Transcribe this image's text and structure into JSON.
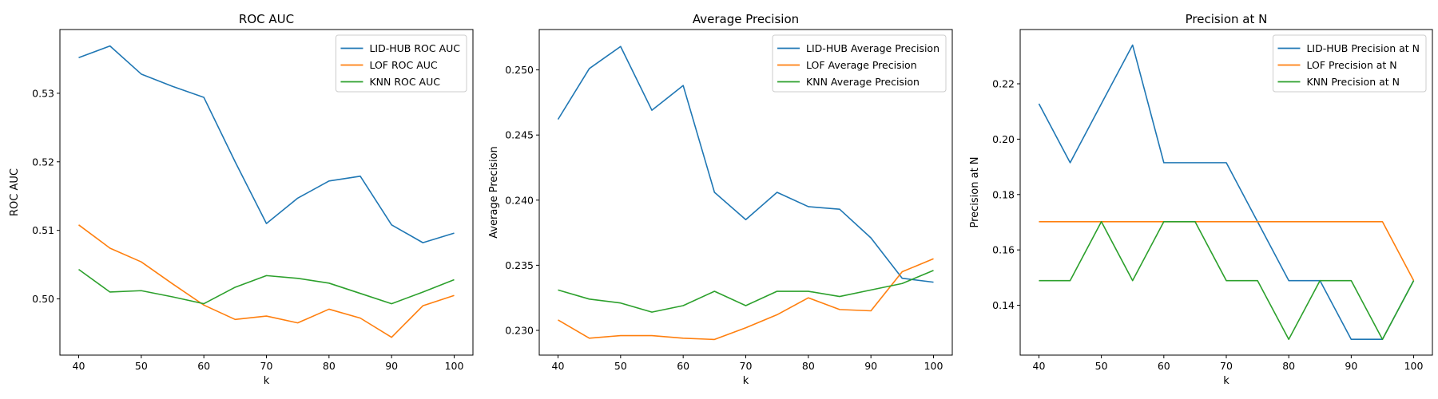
{
  "colors": {
    "lid": "#1f77b4",
    "lof": "#ff7f0e",
    "knn": "#2ca02c"
  },
  "chart_data": [
    {
      "type": "line",
      "title": "ROC AUC",
      "xlabel": "k",
      "ylabel": "ROC AUC",
      "xlim": [
        37,
        103
      ],
      "ylim": [
        0.4918,
        0.5393
      ],
      "xticks": [
        40,
        50,
        60,
        70,
        80,
        90,
        100
      ],
      "yticks": [
        0.5,
        0.51,
        0.52,
        0.53
      ],
      "ytick_labels": [
        "0.50",
        "0.51",
        "0.52",
        "0.53"
      ],
      "legend": "top-right",
      "x": [
        40,
        45,
        50,
        55,
        60,
        65,
        70,
        75,
        80,
        85,
        90,
        95,
        100
      ],
      "series": [
        {
          "name": "LID-HUB ROC AUC",
          "color": "#1f77b4",
          "values": [
            0.5352,
            0.5369,
            0.5328,
            0.531,
            0.5294,
            0.52,
            0.511,
            0.5147,
            0.5172,
            0.5179,
            0.5108,
            0.5082,
            0.5096
          ]
        },
        {
          "name": "LOF ROC AUC",
          "color": "#ff7f0e",
          "values": [
            0.5108,
            0.5074,
            0.5054,
            0.5022,
            0.4991,
            0.497,
            0.4975,
            0.4965,
            0.4985,
            0.4972,
            0.4944,
            0.499,
            0.5005
          ]
        },
        {
          "name": "KNN ROC AUC",
          "color": "#2ca02c",
          "values": [
            0.5043,
            0.501,
            0.5012,
            0.5003,
            0.4993,
            0.5017,
            0.5034,
            0.503,
            0.5023,
            0.5008,
            0.4993,
            0.501,
            0.5028
          ]
        }
      ]
    },
    {
      "type": "line",
      "title": "Average Precision",
      "xlabel": "k",
      "ylabel": "Average Precision",
      "xlim": [
        37,
        103
      ],
      "ylim": [
        0.2281,
        0.2531
      ],
      "xticks": [
        40,
        50,
        60,
        70,
        80,
        90,
        100
      ],
      "yticks": [
        0.23,
        0.235,
        0.24,
        0.245,
        0.25
      ],
      "ytick_labels": [
        "0.230",
        "0.235",
        "0.240",
        "0.245",
        "0.250"
      ],
      "legend": "top-right",
      "x": [
        40,
        45,
        50,
        55,
        60,
        65,
        70,
        75,
        80,
        85,
        90,
        95,
        100
      ],
      "series": [
        {
          "name": "LID-HUB Average Precision",
          "color": "#1f77b4",
          "values": [
            0.2462,
            0.2501,
            0.2518,
            0.2469,
            0.2488,
            0.2406,
            0.2385,
            0.2406,
            0.2395,
            0.2393,
            0.2371,
            0.234,
            0.2337
          ]
        },
        {
          "name": "LOF Average Precision",
          "color": "#ff7f0e",
          "values": [
            0.2308,
            0.2294,
            0.2296,
            0.2296,
            0.2294,
            0.2293,
            0.2302,
            0.2312,
            0.2325,
            0.2316,
            0.2315,
            0.2345,
            0.2355
          ]
        },
        {
          "name": "KNN Average Precision",
          "color": "#2ca02c",
          "values": [
            0.2331,
            0.2324,
            0.2321,
            0.2314,
            0.2319,
            0.233,
            0.2319,
            0.233,
            0.233,
            0.2326,
            0.2331,
            0.2336,
            0.2346
          ]
        }
      ]
    },
    {
      "type": "line",
      "title": "Precision at N",
      "xlabel": "k",
      "ylabel": "Precision at N",
      "xlim": [
        37,
        103
      ],
      "ylim": [
        0.122,
        0.2396
      ],
      "xticks": [
        40,
        50,
        60,
        70,
        80,
        90,
        100
      ],
      "yticks": [
        0.14,
        0.16,
        0.18,
        0.2,
        0.22
      ],
      "ytick_labels": [
        "0.14",
        "0.16",
        "0.18",
        "0.20",
        "0.22"
      ],
      "legend": "top-right",
      "x": [
        40,
        45,
        50,
        55,
        60,
        65,
        70,
        75,
        80,
        85,
        90,
        95,
        100
      ],
      "series": [
        {
          "name": "LID-HUB Precision at N",
          "color": "#1f77b4",
          "values": [
            0.2128,
            0.1915,
            0.2128,
            0.234,
            0.1915,
            0.1915,
            0.1915,
            0.1702,
            0.1489,
            0.1489,
            0.1277,
            0.1277,
            0.1489
          ]
        },
        {
          "name": "LOF Precision at N",
          "color": "#ff7f0e",
          "values": [
            0.1702,
            0.1702,
            0.1702,
            0.1702,
            0.1702,
            0.1702,
            0.1702,
            0.1702,
            0.1702,
            0.1702,
            0.1702,
            0.1702,
            0.1489
          ]
        },
        {
          "name": "KNN Precision at N",
          "color": "#2ca02c",
          "values": [
            0.1489,
            0.1489,
            0.1702,
            0.1489,
            0.1702,
            0.1702,
            0.1489,
            0.1489,
            0.1277,
            0.1489,
            0.1489,
            0.1277,
            0.1489
          ]
        }
      ]
    }
  ]
}
